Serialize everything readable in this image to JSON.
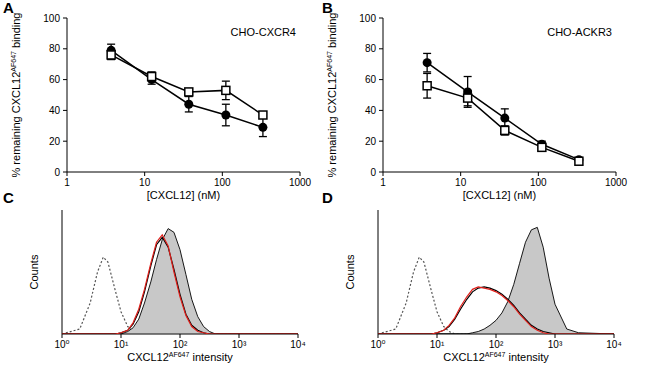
{
  "chart_data": [
    {
      "type": "line",
      "panel_label": "A",
      "title": "CHO-CXCR4",
      "x_label": "[CXCL12] (nM)",
      "y_label": [
        "% remaining CXCL12",
        "AF647",
        " binding"
      ],
      "log": "x",
      "xlim": [
        1,
        1000
      ],
      "xticks": [
        1,
        10,
        100,
        1000
      ],
      "ylim": [
        0,
        100
      ],
      "yticks": [
        0,
        20,
        40,
        60,
        80,
        100
      ],
      "x": [
        3.7,
        12.3,
        37,
        111,
        333
      ],
      "series": [
        {
          "color": "#000000",
          "marker": "circle",
          "values": [
            79,
            60,
            44,
            37,
            29
          ],
          "errors": [
            4,
            3,
            5,
            7,
            6
          ]
        },
        {
          "color": "#000000",
          "marker": "square-open",
          "values": [
            76,
            62,
            52,
            53,
            37
          ],
          "errors": [
            3,
            3,
            2,
            6,
            2
          ]
        }
      ]
    },
    {
      "type": "line",
      "panel_label": "B",
      "title": "CHO-ACKR3",
      "x_label": "[CXCL12] (nM)",
      "y_label": [
        "% remaining CXCL12",
        "AF647",
        " binding"
      ],
      "log": "x",
      "xlim": [
        1,
        1000
      ],
      "xticks": [
        1,
        10,
        100,
        1000
      ],
      "ylim": [
        0,
        100
      ],
      "yticks": [
        0,
        20,
        40,
        60,
        80,
        100
      ],
      "x": [
        3.7,
        12.3,
        37,
        111,
        333
      ],
      "series": [
        {
          "color": "#000000",
          "marker": "circle",
          "values": [
            71,
            52,
            35,
            18,
            8
          ],
          "errors": [
            6,
            10,
            6,
            2,
            1
          ]
        },
        {
          "color": "#000000",
          "marker": "square-open",
          "values": [
            56,
            48,
            27,
            16,
            7
          ],
          "errors": [
            8,
            5,
            3,
            2,
            1
          ]
        }
      ]
    },
    {
      "type": "line",
      "panel_label": "C",
      "x_label": [
        "CXCL12",
        "AF647",
        " intensity"
      ],
      "y_label": "Counts",
      "log": "x",
      "tick_labels": "x",
      "xlim": [
        1,
        10000
      ],
      "xticks": [
        {
          "value": 1,
          "label": "10⁰"
        },
        {
          "value": 10,
          "label": "10¹"
        },
        {
          "value": 100,
          "label": "10²"
        },
        {
          "value": 1000,
          "label": "10³"
        },
        {
          "value": 10000,
          "label": "10⁴"
        }
      ],
      "ylim": [
        0,
        100
      ],
      "x": [
        1,
        2,
        3,
        4,
        5,
        6,
        8,
        10,
        13,
        16,
        20,
        25,
        32,
        40,
        50,
        63,
        79,
        100,
        126,
        158,
        200,
        251,
        316,
        398,
        501,
        631,
        794,
        1000,
        1585,
        2512,
        10000
      ],
      "series": [
        {
          "type": "line",
          "color": "#555555",
          "line_style": "dotted",
          "values": [
            0,
            4,
            25,
            50,
            62,
            58,
            35,
            18,
            6,
            2,
            0,
            0,
            0,
            0,
            0,
            0,
            0,
            0,
            0,
            0,
            0,
            0,
            0,
            0,
            0,
            0,
            0,
            0,
            0,
            0,
            0
          ]
        },
        {
          "type": "area",
          "color": "#c8c8c8",
          "values": [
            0,
            0,
            0,
            0,
            0,
            0,
            0,
            0,
            2,
            5,
            12,
            25,
            42,
            60,
            76,
            85,
            82,
            68,
            48,
            28,
            14,
            6,
            2,
            0,
            0,
            0,
            0,
            0,
            0,
            0,
            0
          ]
        },
        {
          "type": "line",
          "color": "#000000",
          "line_style": "solid",
          "values": [
            0,
            0,
            0,
            0,
            0,
            0,
            0,
            1,
            3,
            8,
            18,
            34,
            55,
            72,
            78,
            70,
            52,
            32,
            16,
            7,
            3,
            1,
            0,
            0,
            0,
            0,
            0,
            0,
            0,
            0,
            0
          ]
        },
        {
          "type": "line",
          "color": "#e0201b",
          "line_style": "solid",
          "values": [
            0,
            0,
            0,
            0,
            0,
            0,
            0,
            1,
            3,
            9,
            20,
            36,
            57,
            74,
            80,
            71,
            50,
            30,
            15,
            6,
            2,
            1,
            0,
            0,
            0,
            0,
            0,
            0,
            0,
            0,
            0
          ]
        }
      ]
    },
    {
      "type": "line",
      "panel_label": "D",
      "x_label": [
        "CXCL12",
        "AF647",
        " intensity"
      ],
      "y_label": "Counts",
      "log": "x",
      "tick_labels": "x",
      "xlim": [
        1,
        10000
      ],
      "xticks": [
        {
          "value": 1,
          "label": "10⁰"
        },
        {
          "value": 10,
          "label": "10¹"
        },
        {
          "value": 100,
          "label": "10²"
        },
        {
          "value": 1000,
          "label": "10³"
        },
        {
          "value": 10000,
          "label": "10⁴"
        }
      ],
      "ylim": [
        0,
        100
      ],
      "x": [
        1,
        2,
        3,
        4,
        5,
        6,
        8,
        10,
        13,
        16,
        20,
        25,
        32,
        40,
        50,
        63,
        79,
        100,
        126,
        158,
        200,
        251,
        316,
        398,
        501,
        631,
        794,
        1000,
        1585,
        2512,
        10000
      ],
      "series": [
        {
          "type": "line",
          "color": "#555555",
          "line_style": "dotted",
          "values": [
            0,
            4,
            25,
            50,
            62,
            58,
            35,
            18,
            6,
            2,
            0,
            0,
            0,
            0,
            0,
            0,
            0,
            0,
            0,
            0,
            0,
            0,
            0,
            0,
            0,
            0,
            0,
            0,
            0,
            0,
            0
          ]
        },
        {
          "type": "area",
          "color": "#c8c8c8",
          "values": [
            0,
            0,
            0,
            0,
            0,
            0,
            0,
            0,
            0,
            0,
            0,
            0,
            0,
            1,
            2,
            4,
            7,
            11,
            17,
            26,
            40,
            57,
            74,
            84,
            86,
            70,
            45,
            24,
            4,
            1,
            0
          ]
        },
        {
          "type": "line",
          "color": "#000000",
          "line_style": "solid",
          "values": [
            0,
            0,
            0,
            0,
            0,
            0,
            0,
            1,
            3,
            6,
            12,
            20,
            28,
            34,
            37,
            38,
            37,
            35,
            32,
            28,
            23,
            17,
            12,
            7,
            4,
            2,
            1,
            0,
            0,
            0,
            0
          ]
        },
        {
          "type": "line",
          "color": "#e0201b",
          "line_style": "solid",
          "values": [
            0,
            0,
            0,
            0,
            0,
            0,
            0,
            1,
            3,
            7,
            13,
            22,
            30,
            36,
            38,
            37,
            36,
            34,
            31,
            27,
            22,
            16,
            11,
            6,
            3,
            1,
            0,
            0,
            0,
            0,
            0
          ]
        }
      ]
    }
  ]
}
